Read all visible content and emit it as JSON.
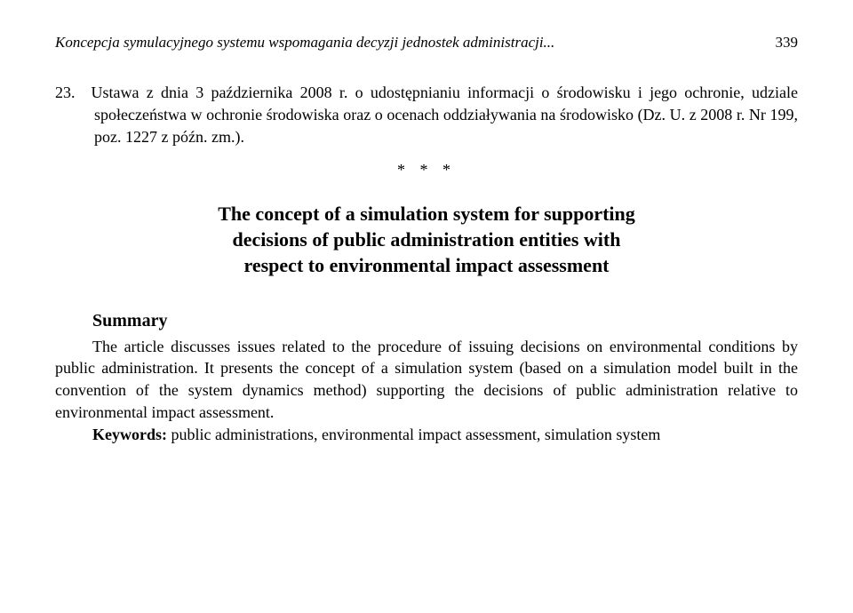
{
  "header": {
    "running_title": "Koncepcja symulacyjnego systemu wspomagania decyzji jednostek administracji...",
    "page_number": "339"
  },
  "bibliography": {
    "item": "23. Ustawa z dnia 3 października 2008 r. o udostępnianiu informacji o środowisku i jego ochronie, udziale społeczeństwa w ochronie środowiska oraz o ocenach oddziaływania na środowisko (Dz. U. z 2008 r. Nr 199, poz. 1227 z późn. zm.)."
  },
  "separator": "* * *",
  "title": {
    "line1": "The concept of a simulation system for supporting",
    "line2": "decisions of public administration entities with",
    "line3": "respect to environmental impact assessment"
  },
  "summary": {
    "heading": "Summary",
    "para1": "The article discusses issues related to the procedure of issuing decisions on environmental conditions by public administration. It presents the concept of a simulation system (based on a simulation model built in the convention of the system dynamics method) supporting the decisions of public administration relative to environmental impact assessment.",
    "keywords_label": "Keywords:",
    "keywords_text": " public administrations, environmental impact assessment, simulation system"
  },
  "colors": {
    "text": "#000000",
    "background": "#ffffff"
  },
  "typography": {
    "body_fontsize": 18,
    "title_fontsize": 22,
    "header_fontsize": 17,
    "font_family": "Georgia / serif"
  }
}
